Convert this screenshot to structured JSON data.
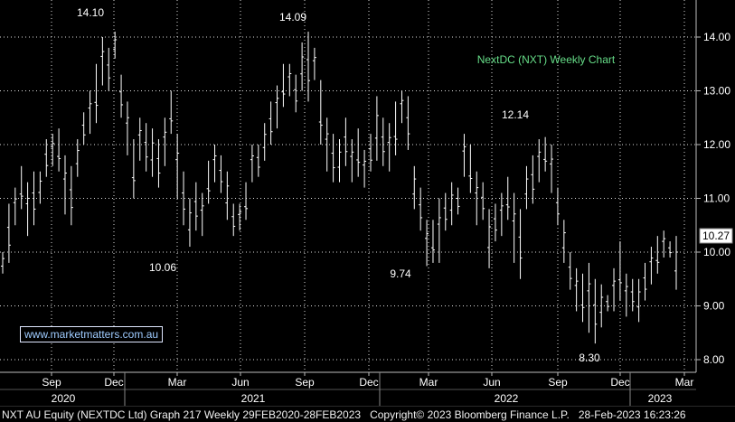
{
  "chart_data": {
    "type": "ohlc",
    "title": "NextDC (NXT) Weekly Chart",
    "current_price_label": "10.27",
    "ylim": [
      7.75,
      14.55
    ],
    "yticks": [
      "14.00",
      "13.00",
      "12.00",
      "11.00",
      "10.00",
      "9.00",
      "8.00"
    ],
    "x_months": [
      "Sep",
      "Dec",
      "Mar",
      "Jun",
      "Sep",
      "Dec",
      "Mar",
      "Jun",
      "Sep",
      "Dec",
      "Mar"
    ],
    "x_years": [
      "2020",
      "2021",
      "2022",
      "2023"
    ],
    "annotations": [
      "14.10",
      "14.09",
      "10.06",
      "12.14",
      "9.74",
      "8.30"
    ],
    "series": [
      {
        "weeks": [
          [
            10.0,
            9.6
          ],
          [
            10.9,
            9.8
          ],
          [
            11.2,
            10.5
          ],
          [
            11.6,
            10.8
          ],
          [
            11.3,
            10.3
          ],
          [
            11.5,
            10.5
          ],
          [
            11.5,
            10.9
          ],
          [
            12.1,
            11.4
          ],
          [
            12.2,
            11.6
          ],
          [
            12.3,
            11.5
          ],
          [
            11.8,
            10.7
          ],
          [
            11.6,
            10.5
          ],
          [
            12.1,
            11.4
          ],
          [
            12.6,
            12.0
          ],
          [
            13.0,
            12.2
          ],
          [
            13.5,
            12.4
          ],
          [
            14.0,
            13.1
          ],
          [
            13.8,
            13.0
          ],
          [
            14.1,
            13.6
          ],
          [
            13.3,
            12.5
          ],
          [
            12.8,
            11.8
          ],
          [
            12.1,
            11.0
          ],
          [
            12.5,
            11.7
          ],
          [
            12.4,
            11.5
          ],
          [
            12.3,
            11.4
          ],
          [
            12.1,
            11.2
          ],
          [
            12.5,
            11.6
          ],
          [
            13.0,
            12.2
          ],
          [
            12.2,
            11.0
          ],
          [
            11.5,
            10.5
          ],
          [
            11.0,
            10.1
          ],
          [
            11.3,
            10.4
          ],
          [
            11.1,
            10.3
          ],
          [
            11.7,
            10.9
          ],
          [
            12.0,
            11.3
          ],
          [
            11.8,
            11.1
          ],
          [
            11.5,
            10.6
          ],
          [
            10.9,
            10.3
          ],
          [
            10.9,
            10.4
          ],
          [
            11.3,
            10.6
          ],
          [
            12.0,
            11.3
          ],
          [
            12.0,
            11.4
          ],
          [
            12.4,
            11.7
          ],
          [
            12.8,
            12.0
          ],
          [
            13.1,
            12.3
          ],
          [
            13.5,
            12.7
          ],
          [
            13.5,
            12.9
          ],
          [
            13.3,
            12.6
          ],
          [
            13.9,
            13.0
          ],
          [
            14.1,
            12.8
          ],
          [
            13.8,
            13.2
          ],
          [
            13.2,
            12.0
          ],
          [
            12.5,
            11.5
          ],
          [
            12.2,
            11.3
          ],
          [
            12.1,
            11.3
          ],
          [
            12.5,
            11.6
          ],
          [
            12.1,
            11.3
          ],
          [
            12.3,
            11.4
          ],
          [
            11.9,
            11.2
          ],
          [
            12.2,
            11.5
          ],
          [
            12.9,
            11.7
          ],
          [
            12.5,
            11.6
          ],
          [
            12.4,
            11.5
          ],
          [
            12.8,
            11.8
          ],
          [
            13.0,
            12.4
          ],
          [
            12.9,
            11.9
          ],
          [
            11.6,
            10.8
          ],
          [
            11.2,
            10.4
          ],
          [
            10.6,
            9.74
          ],
          [
            10.6,
            9.8
          ],
          [
            11.0,
            9.8
          ],
          [
            11.1,
            10.4
          ],
          [
            11.3,
            10.5
          ],
          [
            11.2,
            10.7
          ],
          [
            12.2,
            11.4
          ],
          [
            12.0,
            11.1
          ],
          [
            11.5,
            10.5
          ],
          [
            11.3,
            10.6
          ],
          [
            10.8,
            9.7
          ],
          [
            10.9,
            10.2
          ],
          [
            11.1,
            10.3
          ],
          [
            11.4,
            10.6
          ],
          [
            11.1,
            9.8
          ],
          [
            10.8,
            9.5
          ],
          [
            11.6,
            10.8
          ],
          [
            11.8,
            10.9
          ],
          [
            12.1,
            11.3
          ],
          [
            12.14,
            11.5
          ],
          [
            12.0,
            11.1
          ],
          [
            11.2,
            10.5
          ],
          [
            10.6,
            9.8
          ],
          [
            10.0,
            9.3
          ],
          [
            9.7,
            8.9
          ],
          [
            9.6,
            8.7
          ],
          [
            9.8,
            8.5
          ],
          [
            9.5,
            8.3
          ],
          [
            9.4,
            8.6
          ],
          [
            9.2,
            8.9
          ],
          [
            9.7,
            8.9
          ],
          [
            10.2,
            9.1
          ],
          [
            9.6,
            8.8
          ],
          [
            9.5,
            8.9
          ],
          [
            9.5,
            8.7
          ],
          [
            9.8,
            9.1
          ],
          [
            10.1,
            9.4
          ],
          [
            10.3,
            9.6
          ],
          [
            10.4,
            9.9
          ],
          [
            10.2,
            9.9
          ],
          [
            10.3,
            9.3
          ]
        ]
      }
    ]
  },
  "watermark": "www.marketmatters.com.au",
  "footer": {
    "left": "NXT AU Equity (NEXTDC Ltd) Graph 217  Weekly 29FEB2020-28FEB2023",
    "copyright": "Copyright© 2023 Bloomberg Finance L.P.",
    "timestamp": "28-Feb-2023 16:23:26"
  },
  "colors": {
    "background": "#000000",
    "bars": "#ffffff",
    "title": "#66dd88",
    "grid": "#ffffff"
  }
}
